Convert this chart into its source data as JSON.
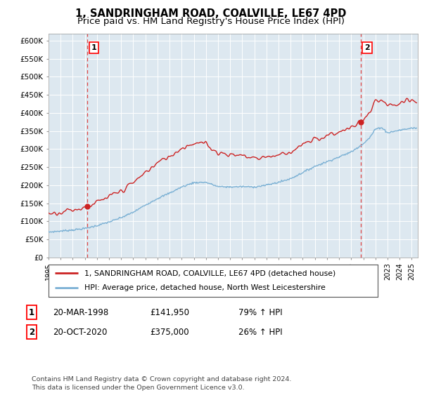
{
  "title_line1": "1, SANDRINGHAM ROAD, COALVILLE, LE67 4PD",
  "title_line2": "Price paid vs. HM Land Registry's House Price Index (HPI)",
  "ylim": [
    0,
    620000
  ],
  "yticks": [
    0,
    50000,
    100000,
    150000,
    200000,
    250000,
    300000,
    350000,
    400000,
    450000,
    500000,
    550000,
    600000
  ],
  "ytick_labels": [
    "£0",
    "£50K",
    "£100K",
    "£150K",
    "£200K",
    "£250K",
    "£300K",
    "£350K",
    "£400K",
    "£450K",
    "£500K",
    "£550K",
    "£600K"
  ],
  "xlim_start": 1995.0,
  "xlim_end": 2025.5,
  "xticks": [
    1995,
    1996,
    1997,
    1998,
    1999,
    2000,
    2001,
    2002,
    2003,
    2004,
    2005,
    2006,
    2007,
    2008,
    2009,
    2010,
    2011,
    2012,
    2013,
    2014,
    2015,
    2016,
    2017,
    2018,
    2019,
    2020,
    2021,
    2022,
    2023,
    2024,
    2025
  ],
  "sale1_x": 1998.22,
  "sale1_y": 141950,
  "sale1_label": "1",
  "sale2_x": 2020.8,
  "sale2_y": 375000,
  "sale2_label": "2",
  "line_color_red": "#cc2222",
  "line_color_blue": "#7ab0d4",
  "dashed_line_color": "#dd4444",
  "background_color": "#ffffff",
  "plot_bg_color": "#dde8f0",
  "grid_color": "#ffffff",
  "legend_line1": "1, SANDRINGHAM ROAD, COALVILLE, LE67 4PD (detached house)",
  "legend_line2": "HPI: Average price, detached house, North West Leicestershire",
  "table_row1_num": "1",
  "table_row1_date": "20-MAR-1998",
  "table_row1_price": "£141,950",
  "table_row1_hpi": "79% ↑ HPI",
  "table_row2_num": "2",
  "table_row2_date": "20-OCT-2020",
  "table_row2_price": "£375,000",
  "table_row2_hpi": "26% ↑ HPI",
  "footer_text": "Contains HM Land Registry data © Crown copyright and database right 2024.\nThis data is licensed under the Open Government Licence v3.0."
}
